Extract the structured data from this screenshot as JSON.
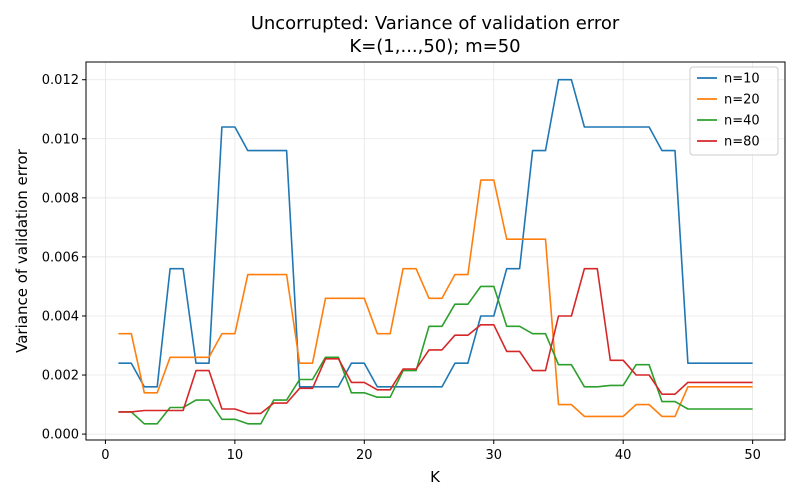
{
  "chart_data": {
    "type": "line",
    "title": "Uncorrupted: Variance of validation error",
    "subtitle": "K=(1,...,50); m=50",
    "xlabel": "K",
    "ylabel": "Variance of validation error",
    "xlim": [
      -1.5,
      52.5
    ],
    "ylim": [
      -0.0002,
      0.0126
    ],
    "xticks": [
      0,
      10,
      20,
      30,
      40,
      50
    ],
    "xtick_labels": [
      "0",
      "10",
      "20",
      "30",
      "40",
      "50"
    ],
    "yticks": [
      0.0,
      0.002,
      0.004,
      0.006,
      0.008,
      0.01,
      0.012
    ],
    "ytick_labels": [
      "0.000",
      "0.002",
      "0.004",
      "0.006",
      "0.008",
      "0.010",
      "0.012"
    ],
    "grid": true,
    "legend_position": "top-right",
    "x": [
      1,
      2,
      3,
      4,
      5,
      6,
      7,
      8,
      9,
      10,
      11,
      12,
      13,
      14,
      15,
      16,
      17,
      18,
      19,
      20,
      21,
      22,
      23,
      24,
      25,
      26,
      27,
      28,
      29,
      30,
      31,
      32,
      33,
      34,
      35,
      36,
      37,
      38,
      39,
      40,
      41,
      42,
      43,
      44,
      45,
      46,
      47,
      48,
      49,
      50
    ],
    "series": [
      {
        "name": "n=10",
        "color": "#1f77b4",
        "values": [
          0.0024,
          0.0024,
          0.0016,
          0.0016,
          0.0056,
          0.0056,
          0.0024,
          0.0024,
          0.0104,
          0.0104,
          0.0096,
          0.0096,
          0.0096,
          0.0096,
          0.0016,
          0.0016,
          0.0016,
          0.0016,
          0.0024,
          0.0024,
          0.0016,
          0.0016,
          0.0016,
          0.0016,
          0.0016,
          0.0016,
          0.0024,
          0.0024,
          0.004,
          0.004,
          0.0056,
          0.0056,
          0.0096,
          0.0096,
          0.012,
          0.012,
          0.0104,
          0.0104,
          0.0104,
          0.0104,
          0.0104,
          0.0104,
          0.0096,
          0.0096,
          0.0024,
          0.0024,
          0.0024,
          0.0024,
          0.0024,
          0.0024
        ]
      },
      {
        "name": "n=20",
        "color": "#ff7f0e",
        "values": [
          0.0034,
          0.0034,
          0.0014,
          0.0014,
          0.0026,
          0.0026,
          0.0026,
          0.0026,
          0.0034,
          0.0034,
          0.0054,
          0.0054,
          0.0054,
          0.0054,
          0.0024,
          0.0024,
          0.0046,
          0.0046,
          0.0046,
          0.0046,
          0.0034,
          0.0034,
          0.0056,
          0.0056,
          0.0046,
          0.0046,
          0.0054,
          0.0054,
          0.0086,
          0.0086,
          0.0066,
          0.0066,
          0.0066,
          0.0066,
          0.001,
          0.001,
          0.0006,
          0.0006,
          0.0006,
          0.0006,
          0.001,
          0.001,
          0.0006,
          0.0006,
          0.0016,
          0.0016,
          0.0016,
          0.0016,
          0.0016,
          0.0016
        ]
      },
      {
        "name": "n=40",
        "color": "#2ca02c",
        "values": [
          0.00075,
          0.00075,
          0.00035,
          0.00035,
          0.0009,
          0.0009,
          0.00115,
          0.00115,
          0.0005,
          0.0005,
          0.00035,
          0.00035,
          0.00115,
          0.00115,
          0.00185,
          0.00185,
          0.0026,
          0.0026,
          0.0014,
          0.0014,
          0.00125,
          0.00125,
          0.00215,
          0.00215,
          0.00365,
          0.00365,
          0.0044,
          0.0044,
          0.005,
          0.005,
          0.00365,
          0.00365,
          0.0034,
          0.0034,
          0.00235,
          0.00235,
          0.0016,
          0.0016,
          0.00165,
          0.00165,
          0.00235,
          0.00235,
          0.0011,
          0.0011,
          0.00085,
          0.00085,
          0.00085,
          0.00085,
          0.00085,
          0.00085
        ]
      },
      {
        "name": "n=80",
        "color": "#d62728",
        "values": [
          0.00075,
          0.00075,
          0.0008,
          0.0008,
          0.0008,
          0.0008,
          0.00215,
          0.00215,
          0.00085,
          0.00085,
          0.0007,
          0.0007,
          0.00105,
          0.00105,
          0.00155,
          0.00155,
          0.00255,
          0.00255,
          0.00175,
          0.00175,
          0.0015,
          0.0015,
          0.0022,
          0.0022,
          0.00285,
          0.00285,
          0.00335,
          0.00335,
          0.0037,
          0.0037,
          0.0028,
          0.0028,
          0.00215,
          0.00215,
          0.004,
          0.004,
          0.0056,
          0.0056,
          0.0025,
          0.0025,
          0.002,
          0.002,
          0.00135,
          0.00135,
          0.00175,
          0.00175,
          0.00175,
          0.00175,
          0.00175,
          0.00175
        ]
      }
    ]
  }
}
